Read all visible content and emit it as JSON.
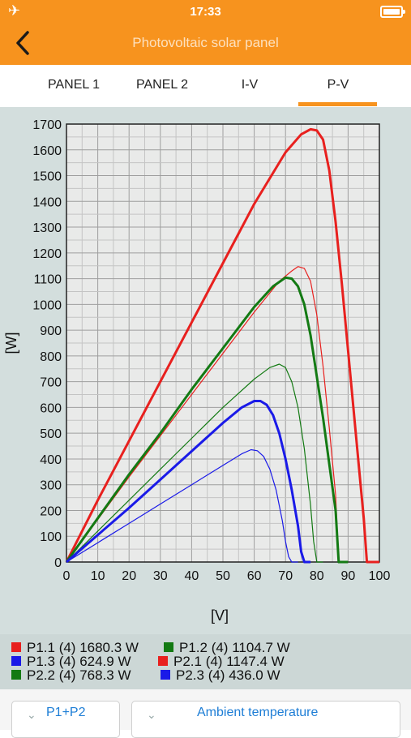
{
  "status": {
    "time": "17:33",
    "airplane_icon": "✈"
  },
  "nav": {
    "title": "Photovoltaic solar panel"
  },
  "tabs": [
    {
      "label": "PANEL 1"
    },
    {
      "label": "PANEL 2"
    },
    {
      "label": "I-V"
    },
    {
      "label": "P-V",
      "active": true
    }
  ],
  "colors": {
    "accent": "#f7931e",
    "red": "#e8201e",
    "green": "#137a13",
    "blue": "#1a1ae8"
  },
  "chart_data": {
    "type": "line",
    "xlabel": "[V]",
    "ylabel": "[W]",
    "xlim": [
      0,
      100
    ],
    "ylim": [
      0,
      1700
    ],
    "xticks": [
      "0",
      "10",
      "20",
      "30",
      "40",
      "50",
      "60",
      "70",
      "80",
      "90",
      "100"
    ],
    "yticks": [
      "0",
      "100",
      "200",
      "300",
      "400",
      "500",
      "600",
      "700",
      "800",
      "900",
      "1000",
      "1100",
      "1200",
      "1300",
      "1400",
      "1500",
      "1600",
      "1700"
    ],
    "grid": true,
    "legend_position": "bottom",
    "series": [
      {
        "name": "P1.1 (4) 1680.3 W",
        "color": "red",
        "bold": true,
        "x": [
          0,
          10,
          20,
          30,
          40,
          50,
          60,
          70,
          75,
          78,
          80,
          82,
          84,
          86,
          88,
          90,
          92,
          94,
          95,
          96,
          98,
          100
        ],
        "y": [
          0,
          240,
          470,
          700,
          930,
          1160,
          1390,
          1590,
          1660,
          1680,
          1675,
          1640,
          1520,
          1320,
          1080,
          820,
          560,
          300,
          170,
          0,
          0,
          0
        ]
      },
      {
        "name": "P1.2 (4) 1104.7 W",
        "color": "green",
        "bold": true,
        "x": [
          0,
          10,
          20,
          30,
          40,
          50,
          60,
          66,
          70,
          72,
          74,
          76,
          78,
          80,
          82,
          84,
          86,
          87,
          88,
          90
        ],
        "y": [
          0,
          170,
          340,
          500,
          670,
          830,
          990,
          1070,
          1104,
          1100,
          1070,
          1000,
          880,
          720,
          560,
          380,
          200,
          0,
          0,
          0
        ]
      },
      {
        "name": "P1.3 (4) 624.9 W",
        "color": "blue",
        "bold": true,
        "x": [
          0,
          10,
          20,
          30,
          40,
          50,
          56,
          60,
          62,
          64,
          66,
          68,
          70,
          72,
          74,
          75,
          76,
          78
        ],
        "y": [
          0,
          105,
          210,
          320,
          430,
          540,
          600,
          625,
          625,
          610,
          570,
          500,
          400,
          280,
          140,
          40,
          0,
          0
        ]
      },
      {
        "name": "P2.1 (4) 1147.4 W",
        "color": "red",
        "bold": false,
        "x": [
          0,
          10,
          20,
          30,
          40,
          50,
          60,
          68,
          72,
          74,
          76,
          78,
          80,
          82,
          84,
          86,
          87,
          88,
          90
        ],
        "y": [
          0,
          165,
          330,
          490,
          650,
          810,
          970,
          1090,
          1130,
          1147,
          1140,
          1090,
          960,
          760,
          520,
          260,
          0,
          0,
          0
        ]
      },
      {
        "name": "P2.2 (4) 768.3 W",
        "color": "green",
        "bold": false,
        "x": [
          0,
          10,
          20,
          30,
          40,
          50,
          60,
          65,
          68,
          70,
          72,
          74,
          76,
          78,
          79,
          80,
          82
        ],
        "y": [
          0,
          120,
          240,
          360,
          480,
          600,
          710,
          755,
          768,
          755,
          700,
          600,
          440,
          220,
          80,
          0,
          0
        ]
      },
      {
        "name": "P2.3 (4) 436.0 W",
        "color": "blue",
        "bold": false,
        "x": [
          0,
          10,
          20,
          30,
          40,
          50,
          56,
          59,
          61,
          63,
          65,
          67,
          69,
          70,
          71,
          72,
          74
        ],
        "y": [
          0,
          75,
          150,
          225,
          300,
          375,
          420,
          436,
          432,
          410,
          360,
          280,
          160,
          80,
          20,
          0,
          0
        ]
      }
    ]
  },
  "bottom": {
    "dropdown1": "P1+P2",
    "dropdown2": "Ambient temperature",
    "chevron_icon": "⌄"
  }
}
